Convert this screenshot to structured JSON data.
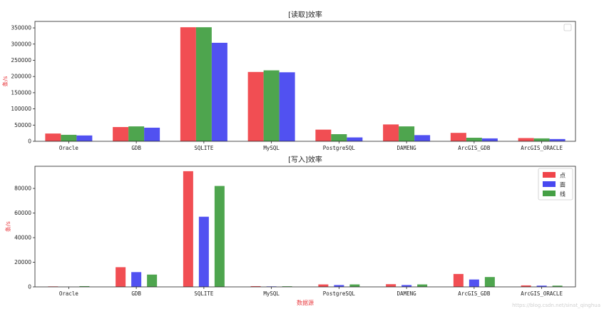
{
  "chart_data": [
    {
      "type": "bar",
      "title": "[读取]效率",
      "ylabel": "条/s",
      "xlabel": "",
      "categories": [
        "Oracle",
        "GDB",
        "SQLITE",
        "MySQL",
        "PostgreSQL",
        "DAMENG",
        "ArcGIS_GDB",
        "ArcGIS_ORACLE"
      ],
      "ylim": [
        0,
        370000
      ],
      "yticks": [
        0,
        50000,
        100000,
        150000,
        200000,
        250000,
        300000,
        350000
      ],
      "grid": false,
      "legend": "top-right",
      "series": [
        {
          "color": "#f0444a",
          "values": [
            24000,
            44000,
            352000,
            214000,
            36000,
            52000,
            26000,
            10000
          ]
        },
        {
          "color": "#45a045",
          "values": [
            20000,
            46000,
            352000,
            219000,
            22000,
            46000,
            11000,
            9000
          ]
        },
        {
          "color": "#4848f0",
          "values": [
            18000,
            42000,
            304000,
            213000,
            12000,
            19000,
            9000,
            7000
          ]
        }
      ]
    },
    {
      "type": "bar",
      "title": "[写入]效率",
      "ylabel": "条/s",
      "xlabel": "数据源",
      "categories": [
        "Oracle",
        "GDB",
        "SQLITE",
        "MySQL",
        "PostgreSQL",
        "DAMENG",
        "ArcGIS_GDB",
        "ArcGIS_ORACLE"
      ],
      "ylim": [
        0,
        98000
      ],
      "yticks": [
        0,
        20000,
        40000,
        60000,
        80000
      ],
      "grid": false,
      "legend": "top-right",
      "series": [
        {
          "name": "点",
          "color": "#f0444a",
          "values": [
            400,
            16000,
            94000,
            600,
            2000,
            2200,
            10500,
            1200
          ]
        },
        {
          "name": "面",
          "color": "#4848f0",
          "values": [
            0,
            12000,
            57000,
            400,
            1500,
            1500,
            6000,
            1000
          ]
        },
        {
          "name": "线",
          "color": "#45a045",
          "values": [
            600,
            10000,
            82000,
            500,
            2000,
            2000,
            8000,
            1000
          ]
        }
      ]
    }
  ],
  "watermark": "https://blog.csdn.net/sinat_qinghua"
}
